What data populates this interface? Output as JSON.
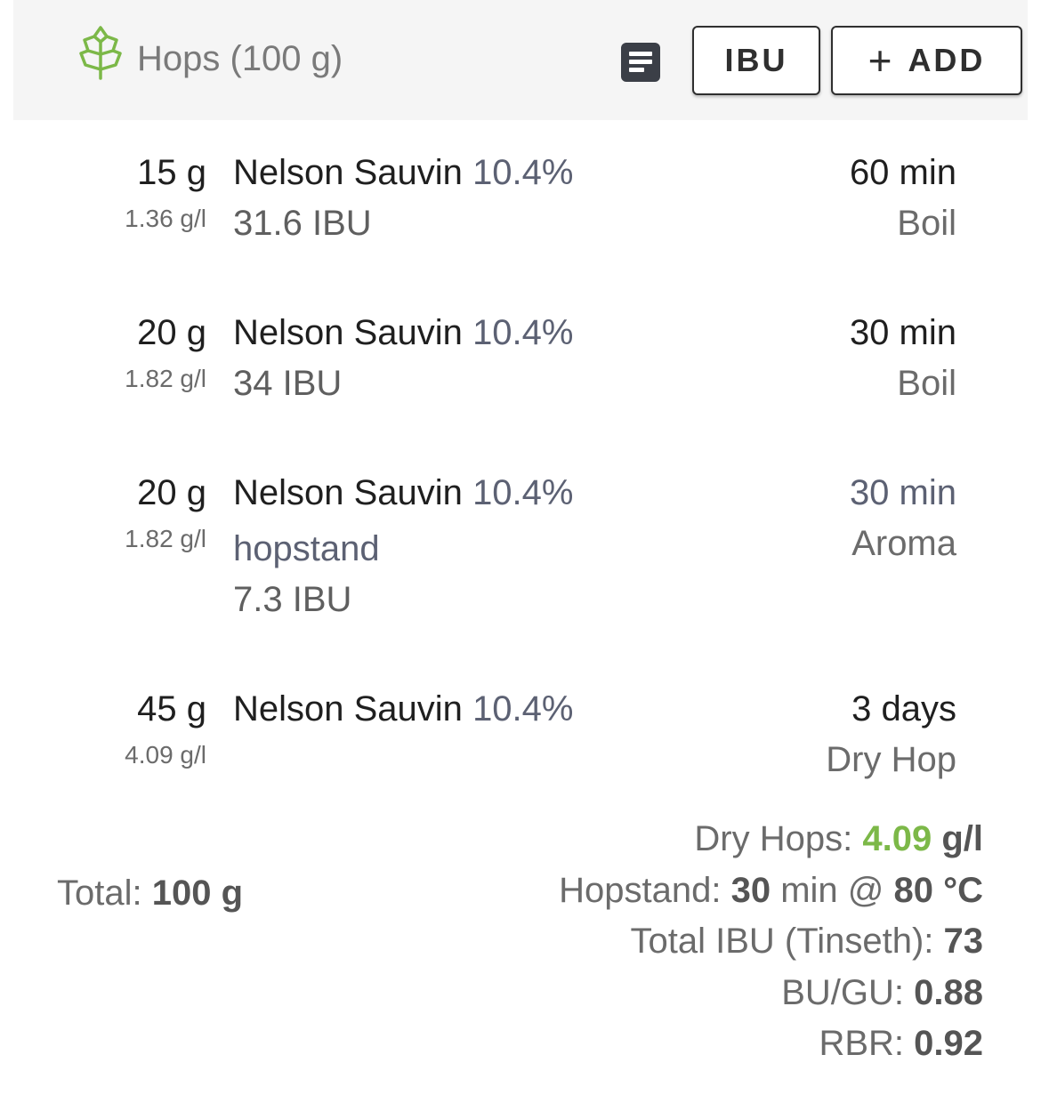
{
  "header": {
    "title": "Hops (100 g)",
    "icon": "hop-icon",
    "notes_icon": "notes-icon",
    "ibu_button": "IBU",
    "add_plus": "+",
    "add_button": "ADD"
  },
  "hops": [
    {
      "amount": "15 g",
      "concentration": "1.36 g/l",
      "name": "Nelson Sauvin",
      "alpha": "10.4%",
      "note": "",
      "ibu": "31.6 IBU",
      "time": "60 min",
      "use": "Boil"
    },
    {
      "amount": "20 g",
      "concentration": "1.82 g/l",
      "name": "Nelson Sauvin",
      "alpha": "10.4%",
      "note": "",
      "ibu": "34 IBU",
      "time": "30 min",
      "use": "Boil"
    },
    {
      "amount": "20 g",
      "concentration": "1.82 g/l",
      "name": "Nelson Sauvin",
      "alpha": "10.4%",
      "note": "hopstand",
      "ibu": "7.3 IBU",
      "time": "30 min",
      "use": "Aroma"
    },
    {
      "amount": "45 g",
      "concentration": "4.09 g/l",
      "name": "Nelson Sauvin",
      "alpha": "10.4%",
      "note": "",
      "ibu": "",
      "time": "3 days",
      "use": "Dry Hop"
    }
  ],
  "summary": {
    "total_label": "Total:",
    "total_value": "100 g",
    "dry_hops_label": "Dry Hops:",
    "dry_hops_value": "4.09",
    "dry_hops_unit": "g/l",
    "hopstand_label": "Hopstand:",
    "hopstand_time": "30",
    "hopstand_time_unit": "min @",
    "hopstand_temp": "80 °C",
    "total_ibu_label": "Total IBU (Tinseth):",
    "total_ibu_value": "73",
    "bugu_label": "BU/GU:",
    "bugu_value": "0.88",
    "rbr_label": "RBR:",
    "rbr_value": "0.92"
  },
  "colors": {
    "accent_green": "#7cb848",
    "header_bg": "#f5f5f5"
  }
}
